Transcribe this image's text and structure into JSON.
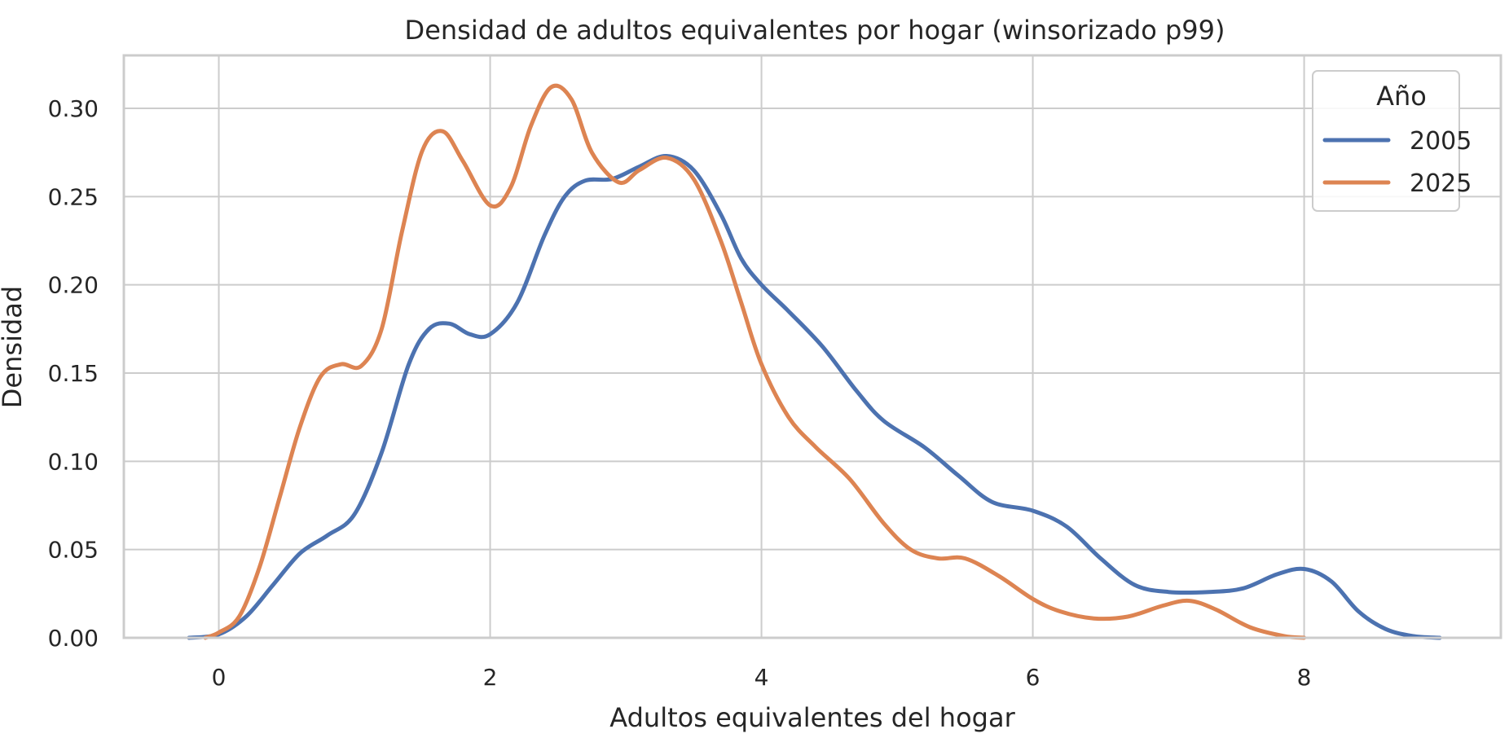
{
  "chart_data": {
    "type": "line",
    "title": "Densidad de adultos equivalentes por hogar (winsorizado p99)",
    "xlabel": "Adultos equivalentes del hogar",
    "ylabel": "Densidad",
    "xlim": [
      -0.7,
      9.45
    ],
    "ylim": [
      0,
      0.33
    ],
    "xticks": [
      0,
      2,
      4,
      6,
      8
    ],
    "yticks": [
      0.0,
      0.05,
      0.1,
      0.15,
      0.2,
      0.25,
      0.3
    ],
    "xtick_labels": [
      "0",
      "2",
      "4",
      "6",
      "8"
    ],
    "ytick_labels": [
      "0.00",
      "0.05",
      "0.10",
      "0.15",
      "0.20",
      "0.25",
      "0.30"
    ],
    "grid": true,
    "legend": {
      "title": "Año",
      "placement": "top-right"
    },
    "series": [
      {
        "name": "2005",
        "color": "#4c72b0",
        "points": [
          [
            -0.22,
            0.0
          ],
          [
            0.0,
            0.002
          ],
          [
            0.2,
            0.012
          ],
          [
            0.4,
            0.03
          ],
          [
            0.6,
            0.048
          ],
          [
            0.8,
            0.058
          ],
          [
            1.0,
            0.07
          ],
          [
            1.2,
            0.105
          ],
          [
            1.4,
            0.155
          ],
          [
            1.55,
            0.175
          ],
          [
            1.7,
            0.178
          ],
          [
            1.85,
            0.172
          ],
          [
            2.0,
            0.172
          ],
          [
            2.2,
            0.19
          ],
          [
            2.4,
            0.228
          ],
          [
            2.55,
            0.25
          ],
          [
            2.7,
            0.259
          ],
          [
            2.9,
            0.26
          ],
          [
            3.1,
            0.267
          ],
          [
            3.3,
            0.273
          ],
          [
            3.5,
            0.265
          ],
          [
            3.7,
            0.24
          ],
          [
            3.85,
            0.215
          ],
          [
            4.0,
            0.2
          ],
          [
            4.2,
            0.185
          ],
          [
            4.45,
            0.165
          ],
          [
            4.7,
            0.14
          ],
          [
            4.9,
            0.123
          ],
          [
            5.2,
            0.108
          ],
          [
            5.45,
            0.092
          ],
          [
            5.7,
            0.077
          ],
          [
            6.0,
            0.072
          ],
          [
            6.25,
            0.063
          ],
          [
            6.5,
            0.045
          ],
          [
            6.75,
            0.03
          ],
          [
            7.0,
            0.026
          ],
          [
            7.3,
            0.026
          ],
          [
            7.55,
            0.028
          ],
          [
            7.8,
            0.036
          ],
          [
            8.0,
            0.039
          ],
          [
            8.2,
            0.032
          ],
          [
            8.4,
            0.015
          ],
          [
            8.6,
            0.005
          ],
          [
            8.8,
            0.001
          ],
          [
            9.0,
            0.0
          ]
        ]
      },
      {
        "name": "2025",
        "color": "#dd8452",
        "points": [
          [
            -0.1,
            0.0
          ],
          [
            0.0,
            0.003
          ],
          [
            0.15,
            0.012
          ],
          [
            0.3,
            0.04
          ],
          [
            0.45,
            0.08
          ],
          [
            0.6,
            0.12
          ],
          [
            0.75,
            0.148
          ],
          [
            0.9,
            0.155
          ],
          [
            1.05,
            0.154
          ],
          [
            1.2,
            0.175
          ],
          [
            1.35,
            0.23
          ],
          [
            1.5,
            0.276
          ],
          [
            1.65,
            0.287
          ],
          [
            1.8,
            0.27
          ],
          [
            2.0,
            0.245
          ],
          [
            2.15,
            0.255
          ],
          [
            2.3,
            0.29
          ],
          [
            2.45,
            0.312
          ],
          [
            2.6,
            0.305
          ],
          [
            2.75,
            0.275
          ],
          [
            2.95,
            0.258
          ],
          [
            3.1,
            0.265
          ],
          [
            3.3,
            0.272
          ],
          [
            3.5,
            0.26
          ],
          [
            3.7,
            0.225
          ],
          [
            3.85,
            0.19
          ],
          [
            4.0,
            0.155
          ],
          [
            4.2,
            0.125
          ],
          [
            4.4,
            0.108
          ],
          [
            4.65,
            0.09
          ],
          [
            4.9,
            0.065
          ],
          [
            5.1,
            0.05
          ],
          [
            5.3,
            0.045
          ],
          [
            5.5,
            0.045
          ],
          [
            5.75,
            0.035
          ],
          [
            6.0,
            0.022
          ],
          [
            6.2,
            0.015
          ],
          [
            6.45,
            0.011
          ],
          [
            6.7,
            0.012
          ],
          [
            6.95,
            0.018
          ],
          [
            7.15,
            0.021
          ],
          [
            7.35,
            0.016
          ],
          [
            7.6,
            0.006
          ],
          [
            7.85,
            0.001
          ],
          [
            8.0,
            0.0
          ]
        ]
      }
    ]
  }
}
